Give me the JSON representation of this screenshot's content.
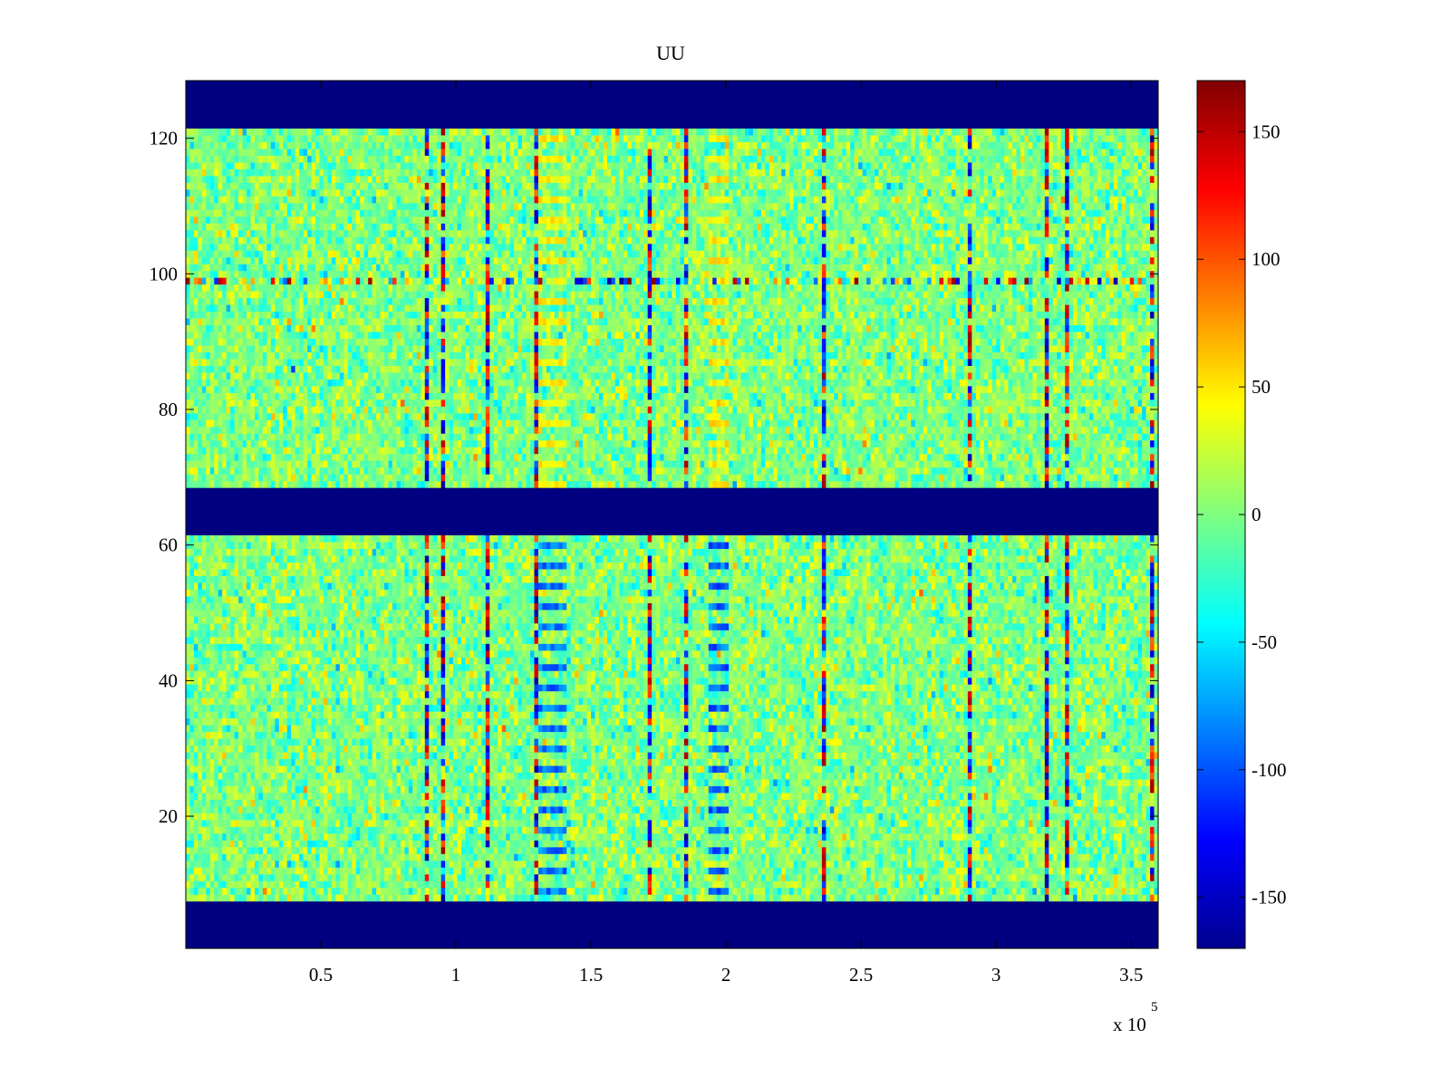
{
  "chart_data": {
    "type": "heatmap",
    "title": "UU",
    "xlabel": "",
    "ylabel": "",
    "x_multiplier_label": "x 10",
    "x_multiplier_exponent": "5",
    "xlim": [
      0.0,
      3.6
    ],
    "ylim": [
      0.5,
      128.5
    ],
    "x_ticks": [
      {
        "value": 0.5,
        "label": "0.5"
      },
      {
        "value": 1.0,
        "label": "1"
      },
      {
        "value": 1.5,
        "label": "1.5"
      },
      {
        "value": 2.0,
        "label": "2"
      },
      {
        "value": 2.5,
        "label": "2.5"
      },
      {
        "value": 3.0,
        "label": "3"
      },
      {
        "value": 3.5,
        "label": "3.5"
      }
    ],
    "y_ticks": [
      {
        "value": 20,
        "label": "20"
      },
      {
        "value": 40,
        "label": "40"
      },
      {
        "value": 60,
        "label": "60"
      },
      {
        "value": 80,
        "label": "80"
      },
      {
        "value": 100,
        "label": "100"
      },
      {
        "value": 120,
        "label": "120"
      }
    ],
    "colorbar": {
      "colormap": "jet",
      "clim": [
        -170,
        170
      ],
      "ticks": [
        {
          "value": 150,
          "label": "150"
        },
        {
          "value": 100,
          "label": "100"
        },
        {
          "value": 50,
          "label": "50"
        },
        {
          "value": 0,
          "label": "0"
        },
        {
          "value": -50,
          "label": "-50"
        },
        {
          "value": -100,
          "label": "-100"
        },
        {
          "value": -150,
          "label": "-150"
        }
      ]
    },
    "fill_rows": [
      {
        "rows": [
          1,
          7
        ],
        "value": -170
      },
      {
        "rows": [
          62,
          68
        ],
        "value": -170
      },
      {
        "rows": [
          122,
          128
        ],
        "value": -170
      }
    ],
    "noise": {
      "mean": 0,
      "std": 22
    },
    "highlight_row": {
      "row": 99,
      "value_range": [
        -160,
        170
      ]
    },
    "bands": [
      {
        "x": [
          1.31,
          1.41
        ],
        "upper_value": 60,
        "lower_value": -110
      },
      {
        "x": [
          1.93,
          2.01
        ],
        "upper_value": 65,
        "lower_value": -115
      }
    ]
  }
}
